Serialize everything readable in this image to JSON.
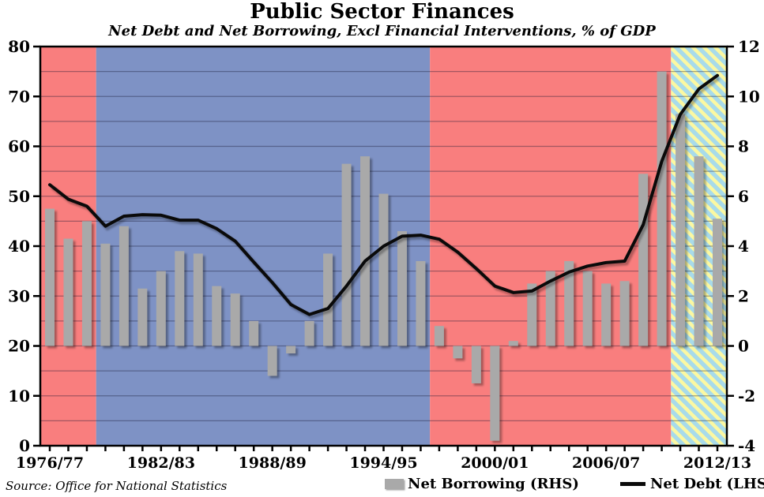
{
  "title": "Public Sector Finances",
  "subtitle": "Net Debt and Net Borrowing, Excl Financial Interventions, % of GDP",
  "source": "Source: Office for National Statistics",
  "legend": [
    {
      "label": "Net Borrowing (RHS)",
      "swatch": "bar"
    },
    {
      "label": "Net Debt (LHS)",
      "swatch": "line"
    }
  ],
  "colors": {
    "red_region": "#F97E7E",
    "blue_region": "#7E92C5",
    "hatch_blue": "#A8DBEA",
    "hatch_yellow": "#FBF8A2",
    "bar": "#A9A9A9",
    "line": "#0A0A0A",
    "grid": "rgba(22,22,48,0.38)",
    "frame": "#000000"
  },
  "chart_data": {
    "type": "bar+line",
    "title": "Public Sector Finances",
    "subtitle": "Net Debt and Net Borrowing, Excl Financial Interventions, % of GDP",
    "categories": [
      "1976/77",
      "1977/78",
      "1978/79",
      "1979/80",
      "1980/81",
      "1981/82",
      "1982/83",
      "1983/84",
      "1984/85",
      "1985/86",
      "1986/87",
      "1987/88",
      "1988/89",
      "1989/90",
      "1990/91",
      "1991/92",
      "1992/93",
      "1993/94",
      "1994/95",
      "1995/96",
      "1996/97",
      "1997/98",
      "1998/99",
      "1999/00",
      "2000/01",
      "2001/02",
      "2002/03",
      "2003/04",
      "2004/05",
      "2005/06",
      "2006/07",
      "2007/08",
      "2008/09",
      "2009/10",
      "2010/11",
      "2011/12",
      "2012/13"
    ],
    "series": [
      {
        "name": "Net Borrowing (RHS)",
        "chart": "bar",
        "axis": "right",
        "values": [
          5.5,
          4.3,
          5.0,
          4.1,
          4.8,
          2.3,
          3.0,
          3.8,
          3.7,
          2.4,
          2.1,
          1.0,
          -1.2,
          -0.3,
          1.0,
          3.7,
          7.3,
          7.6,
          6.1,
          4.6,
          3.4,
          0.8,
          -0.5,
          -1.5,
          -3.8,
          0.2,
          2.5,
          3.0,
          3.4,
          3.0,
          2.5,
          2.6,
          6.9,
          11.0,
          9.3,
          7.6,
          5.1
        ]
      },
      {
        "name": "Net Debt (LHS)",
        "chart": "line",
        "axis": "left",
        "values": [
          52.3,
          49.4,
          48.0,
          44.0,
          46.0,
          46.3,
          46.2,
          45.2,
          45.2,
          43.5,
          41.0,
          36.8,
          32.7,
          28.3,
          26.3,
          27.5,
          32.0,
          37.0,
          40.0,
          42.0,
          42.2,
          41.4,
          38.8,
          35.5,
          32.0,
          30.7,
          31.0,
          33.0,
          34.8,
          36.0,
          36.7,
          37.0,
          44.3,
          57.0,
          66.4,
          71.5,
          74.2
        ]
      }
    ],
    "left_axis": {
      "min": 0,
      "max": 80,
      "tick_step": 10,
      "tick_labels": [
        "0",
        "10",
        "20",
        "30",
        "40",
        "50",
        "60",
        "70",
        "80"
      ]
    },
    "right_axis": {
      "min": -4,
      "max": 12,
      "tick_step": 2,
      "gridline_step": 1,
      "tick_labels": [
        "-4",
        "-2",
        "0",
        "2",
        "4",
        "6",
        "8",
        "10",
        "12"
      ]
    },
    "x_axis": {
      "tick_every_category": true,
      "label_interval": 6,
      "labels_shown": [
        "1976/77",
        "1982/83",
        "1988/89",
        "1994/95",
        "2000/01",
        "2006/07",
        "2012/13"
      ]
    },
    "background_regions": [
      {
        "color_name": "red",
        "start_category": "1976/77",
        "end_category": "1978/79"
      },
      {
        "color_name": "blue",
        "start_category": "1979/80",
        "end_category": "1996/97"
      },
      {
        "color_name": "red",
        "start_category": "1997/98",
        "end_category": "2009/10"
      },
      {
        "color_name": "hatched-blue-yellow",
        "start_category": "2010/11",
        "end_category": "2012/13"
      }
    ],
    "grid": "horizontal lines at every 1 unit of right axis",
    "legend_position": "bottom-right"
  }
}
